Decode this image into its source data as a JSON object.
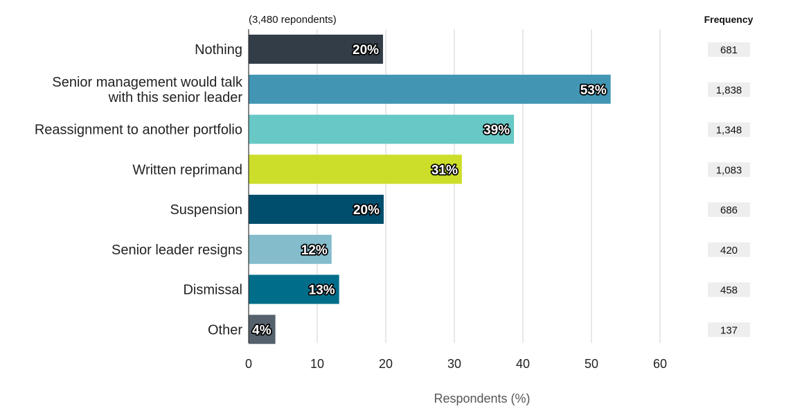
{
  "chart_data": {
    "type": "bar",
    "orientation": "horizontal",
    "subtitle": "(3,480 repondents)",
    "xlabel": "Respondents (%)",
    "ylabel": "",
    "xlim": [
      0,
      60
    ],
    "xticks": [
      0,
      10,
      20,
      30,
      40,
      50,
      60
    ],
    "grid": true,
    "categories": [
      [
        "Nothing"
      ],
      [
        "Senior management would talk",
        "with this senior leader"
      ],
      [
        "Reassignment to another portfolio"
      ],
      [
        "Written reprimand"
      ],
      [
        "Suspension"
      ],
      [
        "Senior leader resigns"
      ],
      [
        "Dismissal"
      ],
      [
        "Other"
      ]
    ],
    "values": [
      19.6,
      52.8,
      38.7,
      31.1,
      19.7,
      12.1,
      13.2,
      3.9
    ],
    "value_labels": [
      "20%",
      "53%",
      "39%",
      "31%",
      "20%",
      "12%",
      "13%",
      "4%"
    ],
    "colors": [
      "#323d48",
      "#4296b4",
      "#67c8c5",
      "#ccde29",
      "#004e6e",
      "#84bccc",
      "#006e8a",
      "#55616d"
    ],
    "frequency_header": "Frequency",
    "frequency": [
      "681",
      "1,838",
      "1,348",
      "1,083",
      "686",
      "420",
      "458",
      "137"
    ],
    "frequency_box_color": "#eeeeee"
  }
}
